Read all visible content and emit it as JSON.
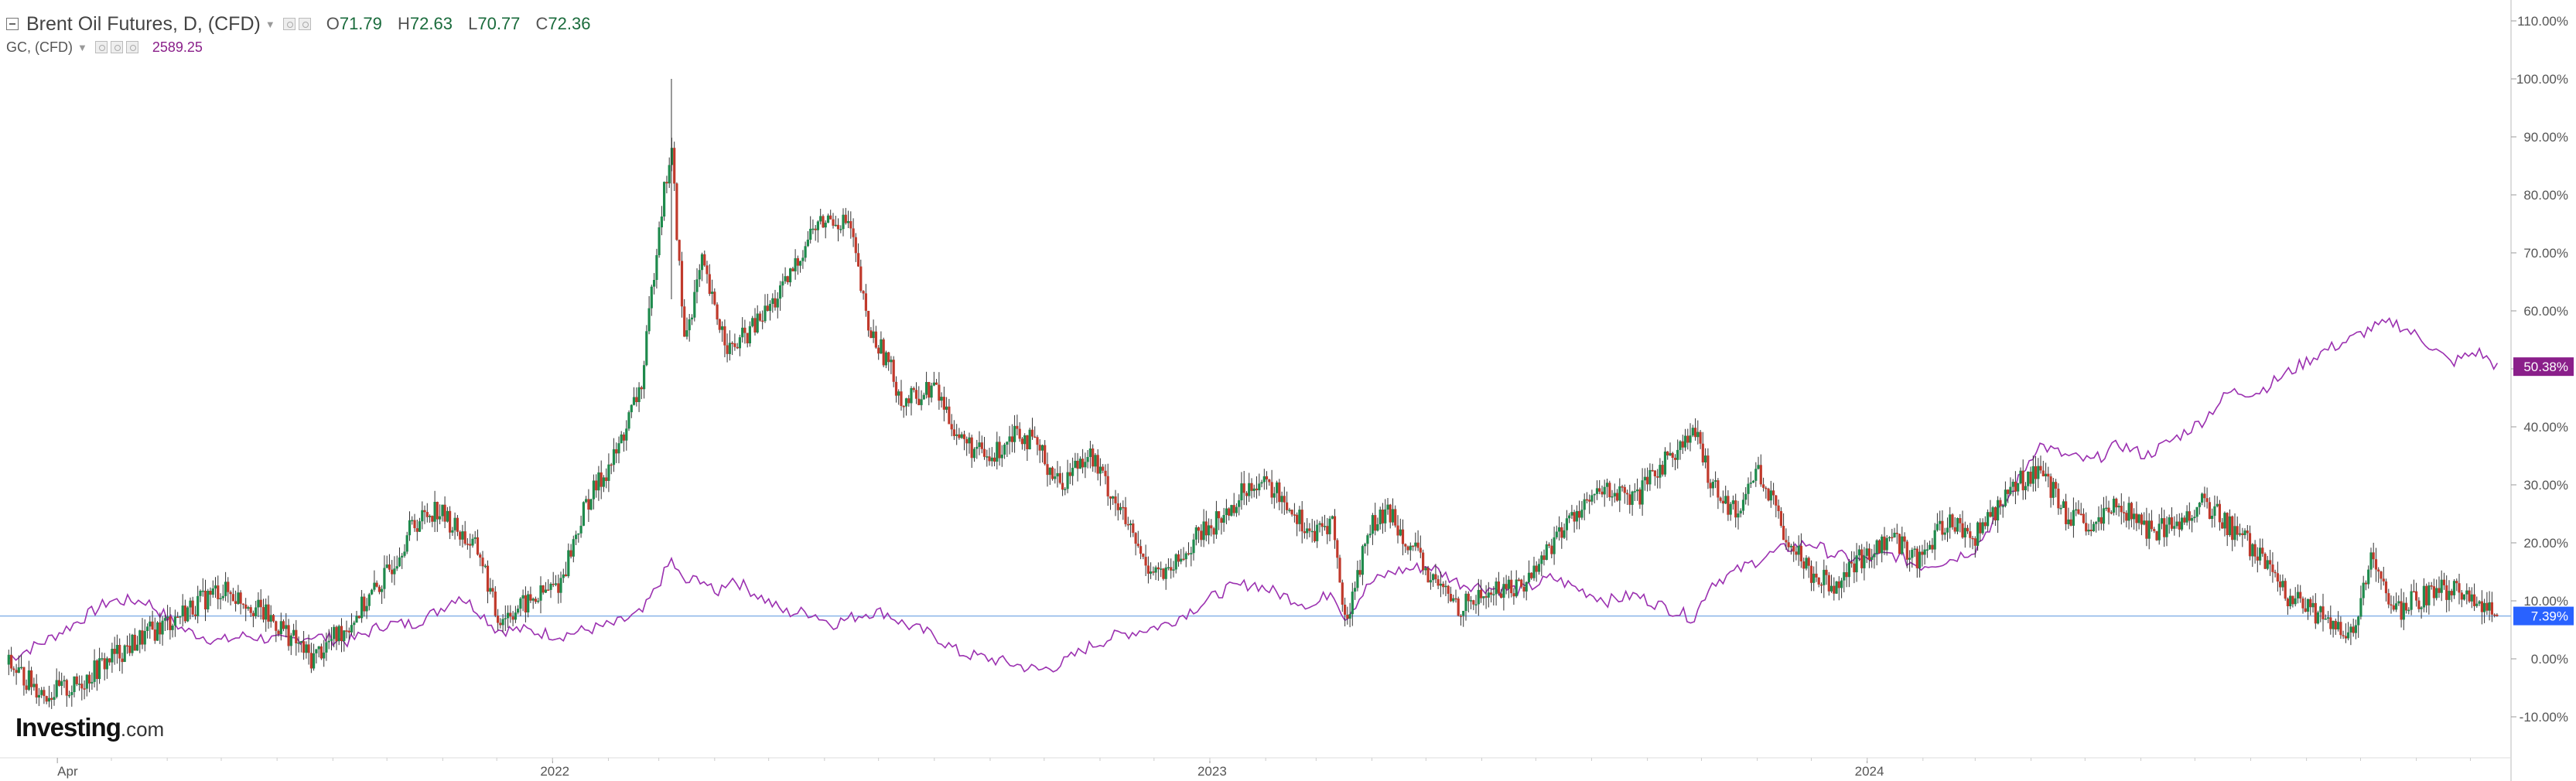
{
  "legend": {
    "main_symbol": "Brent Oil Futures, D, (CFD)",
    "open_label": "O",
    "open_value": "71.79",
    "high_label": "H",
    "high_value": "72.63",
    "low_label": "L",
    "low_value": "70.77",
    "close_label": "C",
    "close_value": "72.36",
    "compare_symbol": "GC, (CFD)",
    "compare_value": "2589.25"
  },
  "logo": {
    "brand": "Investing",
    "suffix": ".com"
  },
  "colors": {
    "up_candle": "#1e8a4c",
    "down_candle": "#c0392b",
    "compare_line": "#9b30b0",
    "baseline": "#8ab4e8",
    "axis_text": "#555555",
    "current_badge": "#2962ff",
    "compare_badge": "#8a1f8a"
  },
  "chart_data": {
    "type": "line",
    "title": "",
    "xlabel": "",
    "ylabel": "",
    "y_unit": "%",
    "ylim": [
      -14,
      112
    ],
    "y_ticks": [
      "110.00%",
      "100.00%",
      "90.00%",
      "80.00%",
      "70.00%",
      "60.00%",
      "50.00%",
      "40.00%",
      "30.00%",
      "20.00%",
      "10.00%",
      "0.00%",
      "-10.00%"
    ],
    "x_tick_labels": [
      "Apr",
      "2022",
      "2023",
      "2024"
    ],
    "grid": false,
    "legend_position": "top-left",
    "current_value_badges": [
      {
        "series": "Brent Oil Futures, D, (CFD)",
        "label": "7.39%",
        "value": 7.39
      },
      {
        "series": "GC, (CFD)",
        "label": "50.38%",
        "value": 50.38
      }
    ],
    "series": [
      {
        "name": "Brent Oil Futures, D, (CFD)",
        "style": "candlestick",
        "x": [
          "2021-03-05",
          "2021-03-25",
          "2021-04-10",
          "2021-04-30",
          "2021-05-20",
          "2021-06-10",
          "2021-06-30",
          "2021-07-15",
          "2021-08-05",
          "2021-08-20",
          "2021-09-10",
          "2021-09-30",
          "2021-10-15",
          "2021-10-28",
          "2021-11-10",
          "2021-11-22",
          "2021-12-01",
          "2021-12-15",
          "2022-01-05",
          "2022-01-20",
          "2022-02-05",
          "2022-02-20",
          "2022-03-01",
          "2022-03-08",
          "2022-03-15",
          "2022-03-25",
          "2022-04-01",
          "2022-04-10",
          "2022-04-25",
          "2022-05-10",
          "2022-05-25",
          "2022-06-05",
          "2022-06-15",
          "2022-06-25",
          "2022-07-05",
          "2022-07-15",
          "2022-08-01",
          "2022-08-15",
          "2022-09-01",
          "2022-09-15",
          "2022-09-28",
          "2022-10-10",
          "2022-10-25",
          "2022-11-10",
          "2022-11-25",
          "2022-12-08",
          "2022-12-25",
          "2023-01-10",
          "2023-01-25",
          "2023-02-10",
          "2023-02-28",
          "2023-03-10",
          "2023-03-17",
          "2023-03-31",
          "2023-04-12",
          "2023-05-03",
          "2023-05-20",
          "2023-06-10",
          "2023-06-25",
          "2023-07-10",
          "2023-07-25",
          "2023-08-10",
          "2023-08-25",
          "2023-09-10",
          "2023-09-27",
          "2023-10-06",
          "2023-10-20",
          "2023-11-01",
          "2023-11-16",
          "2023-12-01",
          "2023-12-13",
          "2023-12-28",
          "2024-01-15",
          "2024-01-30",
          "2024-02-15",
          "2024-03-01",
          "2024-03-20",
          "2024-04-05",
          "2024-04-20",
          "2024-05-05",
          "2024-05-20",
          "2024-06-04",
          "2024-06-20",
          "2024-07-05",
          "2024-07-20",
          "2024-08-05",
          "2024-08-20",
          "2024-09-10",
          "2024-09-25",
          "2024-10-07",
          "2024-10-20",
          "2024-11-05",
          "2024-11-20",
          "2024-12-05",
          "2024-12-16"
        ],
        "values": [
          -1,
          -6,
          -5,
          0,
          4,
          8,
          12,
          10,
          5,
          0,
          6,
          14,
          23,
          26,
          22,
          18,
          7,
          9,
          13,
          27,
          35,
          48,
          75,
          88,
          55,
          68,
          60,
          53,
          58,
          64,
          74,
          76,
          75,
          57,
          52,
          44,
          47,
          38,
          34,
          40,
          36,
          30,
          36,
          27,
          17,
          14,
          21,
          25,
          31,
          28,
          21,
          24,
          6,
          23,
          25,
          14,
          9,
          12,
          13,
          20,
          26,
          29,
          27,
          34,
          39,
          31,
          25,
          33,
          22,
          15,
          13,
          17,
          21,
          17,
          24,
          21,
          29,
          33,
          25,
          22,
          27,
          22,
          23,
          27,
          23,
          18,
          11,
          7,
          3,
          17,
          8,
          11,
          12,
          10,
          7.39
        ]
      },
      {
        "name": "GC, (CFD)",
        "style": "line",
        "x": [
          "2021-03-05",
          "2021-03-25",
          "2021-04-10",
          "2021-04-30",
          "2021-05-20",
          "2021-06-10",
          "2021-06-30",
          "2021-07-15",
          "2021-08-05",
          "2021-08-20",
          "2021-09-10",
          "2021-09-30",
          "2021-10-15",
          "2021-10-28",
          "2021-11-10",
          "2021-11-22",
          "2021-12-01",
          "2021-12-15",
          "2022-01-05",
          "2022-01-20",
          "2022-02-05",
          "2022-02-20",
          "2022-03-01",
          "2022-03-08",
          "2022-03-15",
          "2022-03-25",
          "2022-04-01",
          "2022-04-10",
          "2022-04-25",
          "2022-05-10",
          "2022-05-25",
          "2022-06-05",
          "2022-06-15",
          "2022-06-25",
          "2022-07-05",
          "2022-07-15",
          "2022-08-01",
          "2022-08-15",
          "2022-09-01",
          "2022-09-15",
          "2022-09-28",
          "2022-10-10",
          "2022-10-25",
          "2022-11-10",
          "2022-11-25",
          "2022-12-08",
          "2022-12-25",
          "2023-01-10",
          "2023-01-25",
          "2023-02-10",
          "2023-02-28",
          "2023-03-10",
          "2023-03-17",
          "2023-03-31",
          "2023-04-12",
          "2023-05-03",
          "2023-05-20",
          "2023-06-10",
          "2023-06-25",
          "2023-07-10",
          "2023-07-25",
          "2023-08-10",
          "2023-08-25",
          "2023-09-10",
          "2023-09-27",
          "2023-10-06",
          "2023-10-20",
          "2023-11-01",
          "2023-11-16",
          "2023-12-01",
          "2023-12-13",
          "2023-12-28",
          "2024-01-15",
          "2024-01-30",
          "2024-02-15",
          "2024-03-01",
          "2024-03-20",
          "2024-04-05",
          "2024-04-20",
          "2024-05-05",
          "2024-05-20",
          "2024-06-04",
          "2024-06-20",
          "2024-07-05",
          "2024-07-20",
          "2024-08-05",
          "2024-08-20",
          "2024-09-10",
          "2024-09-25",
          "2024-10-07",
          "2024-10-20",
          "2024-11-05",
          "2024-11-20",
          "2024-12-05",
          "2024-12-16"
        ],
        "values": [
          0,
          3,
          6,
          10,
          10,
          5,
          3,
          4,
          3,
          4,
          3,
          6,
          6,
          8,
          11,
          8,
          5,
          5,
          4,
          5,
          6,
          8,
          13,
          17,
          13,
          14,
          11,
          14,
          11,
          8,
          8,
          6,
          7,
          8,
          8,
          6,
          4,
          1,
          0,
          -1,
          -2,
          -1,
          2,
          4,
          5,
          6,
          9,
          12,
          13,
          11,
          9,
          12,
          7,
          13,
          15,
          16,
          13,
          12,
          12,
          14,
          12,
          10,
          11,
          9,
          7,
          13,
          15,
          17,
          19,
          20,
          18,
          17,
          18,
          16,
          17,
          19,
          28,
          37,
          35,
          34,
          37,
          35,
          38,
          41,
          46,
          46,
          49,
          53,
          55,
          57,
          58,
          55,
          51,
          53,
          50.38
        ]
      }
    ]
  }
}
